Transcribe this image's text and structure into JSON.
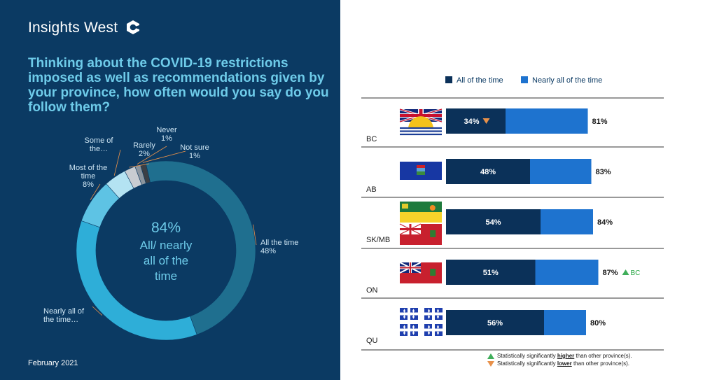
{
  "brand": {
    "name": "Insights West",
    "logo_icon": "insights-west-logo-icon"
  },
  "question": "Thinking about the COVID-19 restrictions imposed as well as recommendations given by your province, how often would you say do you follow them?",
  "date": "February 2021",
  "colors": {
    "panel_bg": "#0b3a63",
    "accent_text": "#6ecbe9",
    "dark_bar": "#0b3159",
    "light_bar": "#1e73cf"
  },
  "chart_data": [
    {
      "type": "pie",
      "style": "donut",
      "slices": [
        {
          "label": "All the time",
          "value_label": "48%",
          "value": 48,
          "color": "#1f6f8f"
        },
        {
          "label": "Nearly all of the time…",
          "value_label": "",
          "value": 36,
          "color": "#2eaed8"
        },
        {
          "label": "Most of the time",
          "value_label": "8%",
          "value": 8,
          "color": "#5ec3e4"
        },
        {
          "label": "Some of the…",
          "value_label": "",
          "value": 4,
          "color": "#b4e3f2"
        },
        {
          "label": "Rarely",
          "value_label": "2%",
          "value": 2,
          "color": "#c8ccd1"
        },
        {
          "label": "Never",
          "value_label": "1%",
          "value": 1,
          "color": "#8c959e"
        },
        {
          "label": "Not sure",
          "value_label": "1%",
          "value": 1,
          "color": "#3b3f45"
        }
      ],
      "center_value": "84%",
      "center_text": [
        "All/ nearly",
        "all of the",
        "time"
      ]
    },
    {
      "type": "bar",
      "orientation": "horizontal",
      "stacked": true,
      "legend": [
        "All of the time",
        "Nearly all of the time"
      ],
      "legend_position": "top",
      "categories": [
        "BC",
        "AB",
        "SK/MB",
        "ON",
        "QU"
      ],
      "series": [
        {
          "name": "All of the time",
          "values": [
            34,
            48,
            54,
            51,
            56
          ],
          "labels": [
            "34%",
            "48%",
            "54%",
            "51%",
            "56%"
          ]
        }
      ],
      "totals": [
        81,
        83,
        84,
        87,
        80
      ],
      "total_labels": [
        "81%",
        "83%",
        "84%",
        "87%",
        "80%"
      ],
      "xlim": [
        0,
        100
      ],
      "significance": [
        {
          "row": 0,
          "target": "series",
          "direction": "lower",
          "text": ""
        },
        {
          "row": 3,
          "target": "total",
          "direction": "higher",
          "text": "BC"
        }
      ],
      "flags": [
        [
          "british-columbia-flag-icon"
        ],
        [
          "alberta-flag-icon"
        ],
        [
          "saskatchewan-flag-icon",
          "manitoba-flag-icon"
        ],
        [
          "ontario-flag-icon"
        ],
        [
          "quebec-flag-icon",
          "quebec-flag-icon",
          "quebec-flag-icon",
          "quebec-flag-icon"
        ]
      ]
    }
  ],
  "sig_legend": {
    "higher": {
      "prefix": "Statistically significantly ",
      "word": "higher",
      "suffix": " than other province(s)."
    },
    "lower": {
      "prefix": "Statistically significantly ",
      "word": "lower",
      "suffix": " than other province(s)."
    }
  }
}
